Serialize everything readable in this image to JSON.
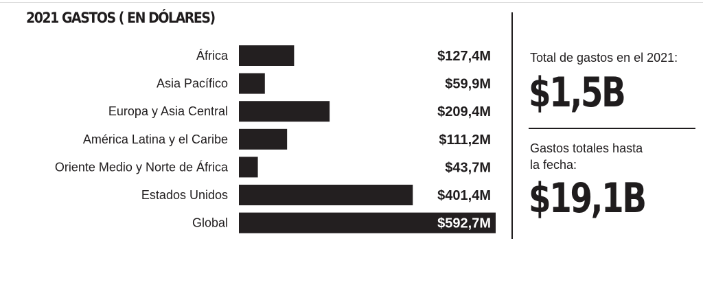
{
  "title": "2021 GASTOS ( EN DÓLARES)",
  "chart_data": {
    "type": "bar",
    "orientation": "horizontal",
    "title": "2021 GASTOS ( EN DÓLARES)",
    "categories": [
      "África",
      "Asia Pacífico",
      "Europa y Asia Central",
      "América Latina y el Caribe",
      "Oriente Medio y Norte de África",
      "Estados Unidos",
      "Global"
    ],
    "values": [
      127.4,
      59.9,
      209.4,
      111.2,
      43.7,
      401.4,
      592.7
    ],
    "value_labels": [
      "$127,4M",
      "$59,9M",
      "$209,4M",
      "$111,2M",
      "$43,7M",
      "$401,4M",
      "$592,7M"
    ],
    "unit": "millones USD",
    "xlim": [
      0,
      592.7
    ],
    "bar_color": "#231f20",
    "grid": false
  },
  "summary": {
    "total_label": "Total de gastos en el 2021:",
    "total_value": "$1,5B",
    "cumulative_label_line1": "Gastos totales hasta",
    "cumulative_label_line2": "la fecha:",
    "cumulative_value": "$19,1B"
  }
}
